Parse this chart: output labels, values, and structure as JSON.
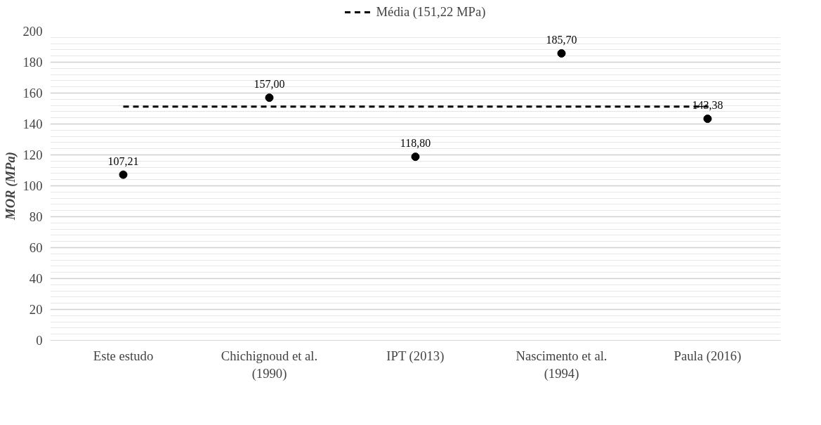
{
  "chart_data": {
    "type": "scatter",
    "ylabel": "MOR (MPa)",
    "categories": [
      "Este estudo",
      "Chichignoud et al.\n(1990)",
      "IPT (2013)",
      "Nascimento et al.\n(1994)",
      "Paula (2016)"
    ],
    "series": [
      {
        "type": "line",
        "name": "Média (151,22 MPa)",
        "color": "#000000",
        "line_style": "dashed",
        "values": [
          151.22,
          151.22,
          151.22,
          151.22,
          151.22
        ]
      },
      {
        "color": "#000000",
        "marker": "circle",
        "values": [
          107.21,
          157.0,
          118.8,
          185.7,
          143.38
        ],
        "value_labels": [
          "107,21",
          "157,00",
          "118,80",
          "185,70",
          "143,38"
        ]
      }
    ],
    "ylim": [
      0,
      200
    ],
    "yticks": [
      0,
      {
        "value": 4,
        "label": null
      },
      {
        "value": 8,
        "label": null
      },
      {
        "value": 12,
        "label": null
      },
      {
        "value": 16,
        "label": null
      },
      20,
      {
        "value": 24,
        "label": null
      },
      {
        "value": 28,
        "label": null
      },
      {
        "value": 32,
        "label": null
      },
      {
        "value": 36,
        "label": null
      },
      40,
      {
        "value": 44,
        "label": null
      },
      {
        "value": 48,
        "label": null
      },
      {
        "value": 52,
        "label": null
      },
      {
        "value": 56,
        "label": null
      },
      60,
      {
        "value": 64,
        "label": null
      },
      {
        "value": 68,
        "label": null
      },
      {
        "value": 72,
        "label": null
      },
      {
        "value": 76,
        "label": null
      },
      80,
      {
        "value": 84,
        "label": null
      },
      {
        "value": 88,
        "label": null
      },
      {
        "value": 92,
        "label": null
      },
      {
        "value": 96,
        "label": null
      },
      100,
      {
        "value": 104,
        "label": null
      },
      {
        "value": 108,
        "label": null
      },
      {
        "value": 112,
        "label": null
      },
      {
        "value": 116,
        "label": null
      },
      120,
      {
        "value": 124,
        "label": null
      },
      {
        "value": 128,
        "label": null
      },
      {
        "value": 132,
        "label": null
      },
      {
        "value": 136,
        "label": null
      },
      140,
      {
        "value": 144,
        "label": null
      },
      {
        "value": 148,
        "label": null
      },
      {
        "value": 152,
        "label": null
      },
      {
        "value": 156,
        "label": null
      },
      160,
      {
        "value": 164,
        "label": null
      },
      {
        "value": 168,
        "label": null
      },
      {
        "value": 172,
        "label": null
      },
      {
        "value": 176,
        "label": null
      },
      180,
      {
        "value": 184,
        "label": null
      },
      {
        "value": 188,
        "label": null
      },
      {
        "value": 192,
        "label": null
      },
      {
        "value": 196,
        "label": null
      },
      200
    ],
    "grid": "y",
    "legend": "top"
  }
}
